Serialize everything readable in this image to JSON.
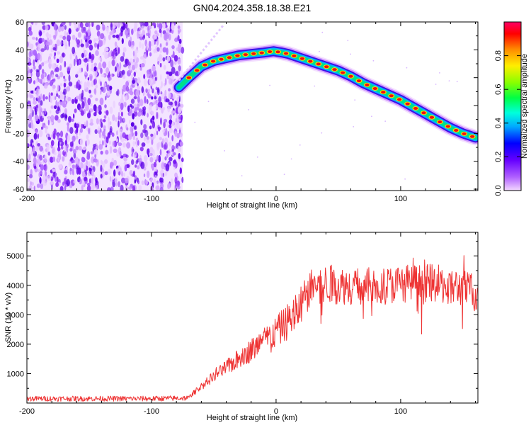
{
  "title": "GN04.2024.358.18.38.E21",
  "chart_data": [
    {
      "type": "heatmap",
      "name": "spectrogram",
      "xlabel": "Height of straight line (km)",
      "ylabel": "Frequency (Hz)",
      "xlim": [
        -200,
        162
      ],
      "ylim": [
        -61,
        60
      ],
      "xticks": [
        -200,
        -100,
        0,
        100
      ],
      "yticks": [
        -60,
        -40,
        -20,
        0,
        20,
        40,
        60
      ],
      "noise_region_x": [
        -200,
        -75
      ],
      "ridge": {
        "x": [
          -78,
          -70,
          -60,
          -50,
          -40,
          -30,
          -20,
          -10,
          -2,
          5,
          10,
          20,
          30,
          40,
          50,
          60,
          70,
          80,
          90,
          100,
          110,
          120,
          130,
          140,
          150,
          160
        ],
        "freq": [
          13,
          20,
          28,
          32,
          34,
          36,
          37,
          38,
          39,
          38,
          37,
          34,
          31,
          28,
          25,
          21,
          16,
          12,
          8,
          4,
          -1,
          -6,
          -11,
          -16,
          -20,
          -23
        ]
      },
      "colorbar": {
        "label": "Normalized spectral amplitude",
        "ticks": [
          0.0,
          0.2,
          0.4,
          0.6,
          0.8
        ],
        "range": [
          0,
          1
        ],
        "colors": [
          "#f4d8ff",
          "#b060ff",
          "#6600ff",
          "#0000ff",
          "#00aaff",
          "#00ffdd",
          "#00ff44",
          "#88ff00",
          "#ffee00",
          "#ff8800",
          "#ff0000",
          "#ff0066"
        ]
      }
    },
    {
      "type": "line",
      "name": "snr",
      "xlabel": "Height of straight line (km)",
      "ylabel": "SNR (10 * v/v)",
      "xlim": [
        -200,
        162
      ],
      "ylim": [
        0,
        5800
      ],
      "xticks": [
        -200,
        -100,
        0,
        100
      ],
      "yticks": [
        1000,
        2000,
        3000,
        4000,
        5000
      ],
      "color": "#ee3333",
      "trend": {
        "x": [
          -200,
          -100,
          -70,
          -65,
          -50,
          -40,
          -30,
          -20,
          -10,
          0,
          10,
          20,
          25,
          30,
          40,
          50,
          70,
          90,
          110,
          130,
          150,
          162
        ],
        "y": [
          150,
          150,
          170,
          400,
          900,
          1200,
          1500,
          1800,
          2100,
          2400,
          2800,
          3300,
          3700,
          4000,
          4050,
          4000,
          3950,
          4000,
          4100,
          4050,
          3900,
          3700
        ]
      }
    }
  ]
}
